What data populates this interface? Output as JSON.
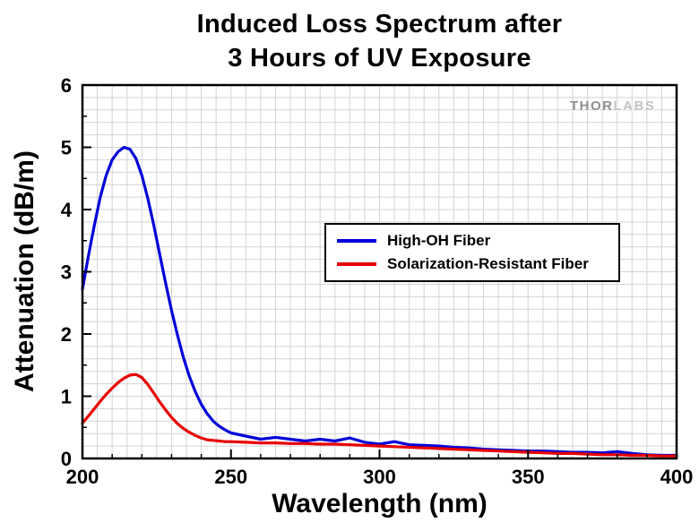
{
  "figure": {
    "title_line1": "Induced Loss Spectrum after",
    "title_line2": "3 Hours of UV Exposure",
    "watermark": {
      "part1": "THOR",
      "part2": "LABS"
    }
  },
  "chart_data": {
    "type": "line",
    "title": "Induced Loss Spectrum after 3 Hours of UV Exposure",
    "xlabel": "Wavelength (nm)",
    "ylabel": "Attenuation (dB/m)",
    "xlim": [
      200,
      400
    ],
    "ylim": [
      0,
      6
    ],
    "xticks": [
      200,
      250,
      300,
      350,
      400
    ],
    "yticks": [
      0,
      1,
      2,
      3,
      4,
      5,
      6
    ],
    "x_minor_step": 10,
    "y_minor_step": 0.5,
    "x_grid_step": 5,
    "y_grid_step": 0.2,
    "grid": true,
    "legend_position": "center-right",
    "grid_color": "#d3d3d3",
    "frame_color": "#000000",
    "x": [
      200,
      202,
      204,
      206,
      208,
      210,
      212,
      214,
      216,
      218,
      220,
      222,
      224,
      226,
      228,
      230,
      232,
      234,
      236,
      238,
      240,
      242,
      244,
      246,
      248,
      250,
      255,
      260,
      265,
      270,
      275,
      280,
      285,
      290,
      295,
      300,
      305,
      310,
      315,
      320,
      325,
      330,
      335,
      340,
      345,
      350,
      355,
      360,
      365,
      370,
      375,
      380,
      385,
      390,
      395,
      400
    ],
    "series": [
      {
        "name": "High-OH Fiber",
        "color": "#0000d8",
        "values": [
          2.72,
          3.25,
          3.75,
          4.2,
          4.55,
          4.8,
          4.93,
          5.0,
          4.97,
          4.82,
          4.55,
          4.18,
          3.75,
          3.28,
          2.82,
          2.38,
          1.98,
          1.62,
          1.32,
          1.07,
          0.87,
          0.72,
          0.6,
          0.52,
          0.46,
          0.41,
          0.36,
          0.31,
          0.34,
          0.31,
          0.28,
          0.31,
          0.28,
          0.33,
          0.26,
          0.23,
          0.27,
          0.22,
          0.21,
          0.2,
          0.18,
          0.17,
          0.15,
          0.14,
          0.13,
          0.12,
          0.12,
          0.11,
          0.1,
          0.1,
          0.09,
          0.11,
          0.08,
          0.06,
          0.05,
          0.05
        ]
      },
      {
        "name": "Solarization-Resistant Fiber",
        "color": "#e80000",
        "values": [
          0.57,
          0.68,
          0.8,
          0.92,
          1.03,
          1.13,
          1.22,
          1.29,
          1.34,
          1.35,
          1.3,
          1.19,
          1.05,
          0.91,
          0.78,
          0.66,
          0.56,
          0.48,
          0.42,
          0.37,
          0.33,
          0.3,
          0.29,
          0.28,
          0.27,
          0.27,
          0.26,
          0.25,
          0.25,
          0.24,
          0.24,
          0.23,
          0.23,
          0.22,
          0.21,
          0.2,
          0.19,
          0.18,
          0.17,
          0.16,
          0.15,
          0.14,
          0.13,
          0.12,
          0.11,
          0.1,
          0.09,
          0.08,
          0.08,
          0.07,
          0.06,
          0.06,
          0.05,
          0.05,
          0.04,
          0.04
        ]
      }
    ]
  }
}
